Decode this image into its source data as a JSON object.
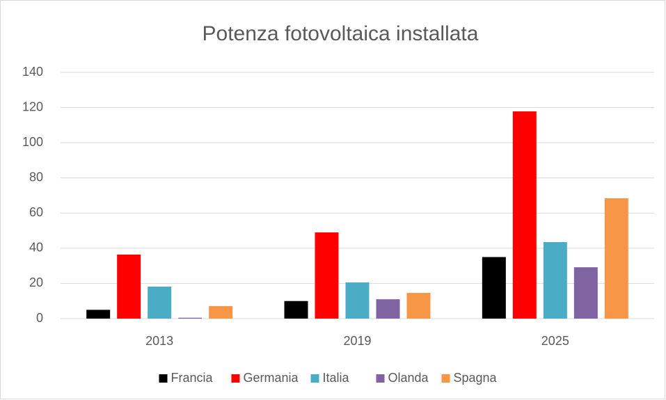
{
  "chart_data": {
    "type": "bar",
    "title": "Potenza fotovoltaica installata",
    "categories": [
      "2013",
      "2019",
      "2025"
    ],
    "series": [
      {
        "name": "Francia",
        "color": "#000000",
        "values": [
          5,
          10,
          35
        ]
      },
      {
        "name": "Germania",
        "color": "#ff0000",
        "values": [
          36.4,
          49,
          117.8
        ]
      },
      {
        "name": "Italia",
        "color": "#4bacc6",
        "values": [
          18.2,
          20.6,
          43.5
        ]
      },
      {
        "name": "Olanda",
        "color": "#8064a2",
        "values": [
          0.5,
          11,
          29.2
        ]
      },
      {
        "name": "Spagna",
        "color": "#f79646",
        "values": [
          7.1,
          14.6,
          68.4
        ]
      }
    ],
    "ylim": [
      0,
      140
    ],
    "yticks": [
      0,
      20,
      40,
      60,
      80,
      100,
      120,
      140
    ],
    "grid": true,
    "legend": "bottom"
  }
}
